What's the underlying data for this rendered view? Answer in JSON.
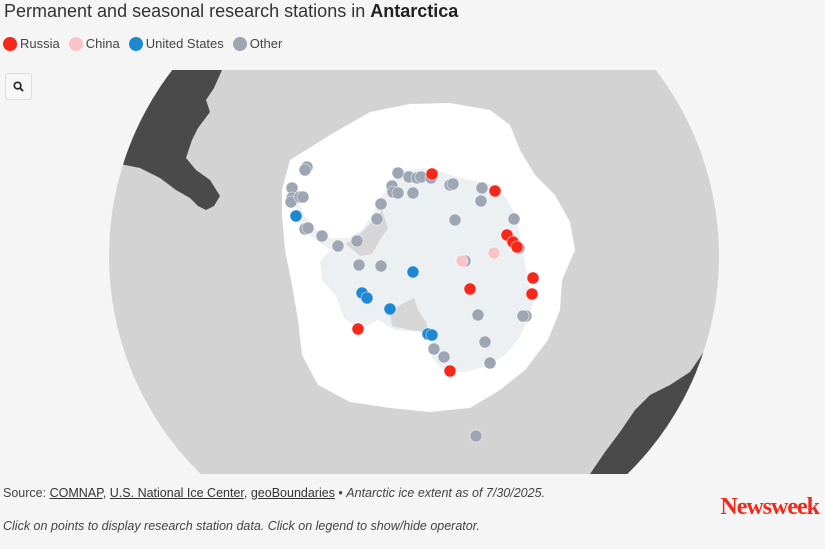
{
  "title": {
    "prefix": "Permanent and seasonal research stations in ",
    "bold": "Antarctica"
  },
  "legend": [
    {
      "label": "Russia",
      "color": "#f5281b"
    },
    {
      "label": "China",
      "color": "#f9c4c8"
    },
    {
      "label": "United States",
      "color": "#1e88d2"
    },
    {
      "label": "Other",
      "color": "#9ea6b4"
    }
  ],
  "map": {
    "zoom_icon": "search-icon",
    "colors": {
      "ocean": "#d3d3d3",
      "land": "#4a4a4a",
      "sea_ice": "#ffffff",
      "antarctica": "#edf0f2",
      "ice_shelf": "#d6d6d6",
      "background": "#f5f5f5"
    }
  },
  "footer": {
    "source_label": "Source: ",
    "sources": [
      "COMNAP",
      "U.S. National Ice Center",
      "geoBoundaries"
    ],
    "separator": ", ",
    "bullet": " • ",
    "ice_note": "Antarctic ice extent as of 7/30/2025.",
    "instructions": "Click on points to display research station data. Click on legend to show/hide operator.",
    "logo": "Newsweek"
  }
}
